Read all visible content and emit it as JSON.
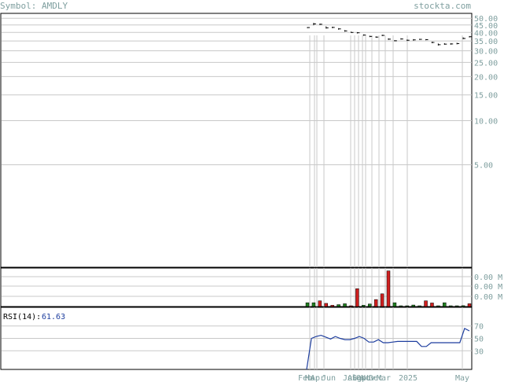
{
  "header": {
    "symbol_label": "Symbol: AMDLY",
    "brand": "stockta.com"
  },
  "chart_data": [
    {
      "type": "line",
      "panel": "price",
      "scale": "log",
      "y_ticks": [
        "50.00",
        "45.00",
        "40.00",
        "35.00",
        "30.00",
        "25.00",
        "20.00",
        "15.00",
        "10.00",
        "5.00"
      ],
      "y_tick_values": [
        50,
        45,
        40,
        35,
        30,
        25,
        20,
        15,
        10,
        5
      ],
      "ylim": [
        1.0,
        54.0
      ],
      "series": [
        {
          "type": "hlc-bars",
          "points": [
            {
              "i": 0,
              "h": 43.5,
              "l": 42.8,
              "c": 43.2
            },
            {
              "i": 1,
              "h": 46.5,
              "l": 44.8,
              "c": 45.8
            },
            {
              "i": 2,
              "h": 46.0,
              "l": 45.0,
              "c": 45.5
            },
            {
              "i": 3,
              "h": 44.0,
              "l": 42.5,
              "c": 43.0
            },
            {
              "i": 4,
              "h": 43.8,
              "l": 42.8,
              "c": 43.3
            },
            {
              "i": 5,
              "h": 42.8,
              "l": 41.8,
              "c": 42.3
            },
            {
              "i": 6,
              "h": 41.5,
              "l": 40.5,
              "c": 41.0
            },
            {
              "i": 7,
              "h": 40.5,
              "l": 39.8,
              "c": 40.0
            },
            {
              "i": 8,
              "h": 40.2,
              "l": 39.4,
              "c": 39.8
            },
            {
              "i": 9,
              "h": 38.8,
              "l": 38.0,
              "c": 38.4
            },
            {
              "i": 10,
              "h": 38.0,
              "l": 37.2,
              "c": 37.6
            },
            {
              "i": 11,
              "h": 37.6,
              "l": 36.8,
              "c": 37.2
            },
            {
              "i": 12,
              "h": 38.6,
              "l": 37.8,
              "c": 38.2
            },
            {
              "i": 13,
              "h": 36.5,
              "l": 35.6,
              "c": 36.0
            },
            {
              "i": 14,
              "h": 35.5,
              "l": 34.8,
              "c": 35.1
            },
            {
              "i": 15,
              "h": 36.5,
              "l": 35.8,
              "c": 36.1
            },
            {
              "i": 16,
              "h": 35.8,
              "l": 35.0,
              "c": 35.4
            },
            {
              "i": 17,
              "h": 36.0,
              "l": 35.2,
              "c": 35.6
            },
            {
              "i": 18,
              "h": 36.2,
              "l": 35.6,
              "c": 35.9
            },
            {
              "i": 19,
              "h": 36.0,
              "l": 35.4,
              "c": 35.7
            },
            {
              "i": 20,
              "h": 34.6,
              "l": 33.8,
              "c": 34.2
            },
            {
              "i": 21,
              "h": 33.6,
              "l": 32.6,
              "c": 33.0
            },
            {
              "i": 22,
              "h": 33.8,
              "l": 33.0,
              "c": 33.3
            },
            {
              "i": 23,
              "h": 33.8,
              "l": 33.0,
              "c": 33.4
            },
            {
              "i": 24,
              "h": 34.0,
              "l": 33.2,
              "c": 33.6
            },
            {
              "i": 25,
              "h": 37.0,
              "l": 36.0,
              "c": 36.4
            },
            {
              "i": 26,
              "h": 37.8,
              "l": 37.0,
              "c": 37.4
            }
          ]
        }
      ]
    },
    {
      "type": "bar",
      "panel": "volume",
      "y_ticks": [
        "0.00 M",
        "0.00 M",
        "0.00 M"
      ],
      "values": [
        0.3,
        0.3,
        0.45,
        0.25,
        0.1,
        0.15,
        0.22,
        0.05,
        1.4,
        0.1,
        0.2,
        0.55,
        1.0,
        2.8,
        0.3,
        0.05,
        0.03,
        0.12,
        0.0,
        0.45,
        0.28,
        0.03,
        0.3,
        0.03,
        0.04,
        0.07,
        0.22
      ],
      "colors": [
        "green",
        "green",
        "red",
        "red",
        "red",
        "green",
        "green",
        "red",
        "red",
        "green",
        "green",
        "red",
        "red",
        "red",
        "green",
        "green",
        "green",
        "green",
        "green",
        "red",
        "red",
        "green",
        "green",
        "green",
        "green",
        "green",
        "red"
      ]
    },
    {
      "type": "line",
      "panel": "rsi",
      "label": "RSI(14):",
      "value_label": "61.63",
      "y_ticks": [
        "70",
        "50",
        "30"
      ],
      "y_tick_values": [
        70,
        50,
        30
      ],
      "ylim": [
        0,
        100
      ],
      "series": [
        {
          "name": "RSI(14)",
          "color": "#1f3f9f",
          "values": [
            0,
            50,
            53,
            55,
            52,
            49,
            53,
            50,
            48,
            48,
            50,
            53,
            50,
            44,
            44,
            48,
            43,
            43,
            44,
            45,
            45,
            45,
            45,
            45,
            37,
            37,
            43,
            43,
            43,
            43,
            43,
            43,
            43,
            66,
            62
          ]
        }
      ]
    }
  ],
  "x_axis": {
    "labels": [
      "Feb",
      "Mar",
      "Apr",
      "Jun",
      "Jul",
      "Aug",
      "Sep",
      "Oct",
      "Nov",
      "Dec",
      "Mar",
      "2025",
      "May"
    ]
  },
  "colors": {
    "price_line": "#000000",
    "volume_up": "#1f7f1f",
    "volume_down": "#cf1f1f",
    "rsi_line": "#1f3f9f",
    "tick_text": "#7f9f9f",
    "grid": "#c8c8c8"
  }
}
